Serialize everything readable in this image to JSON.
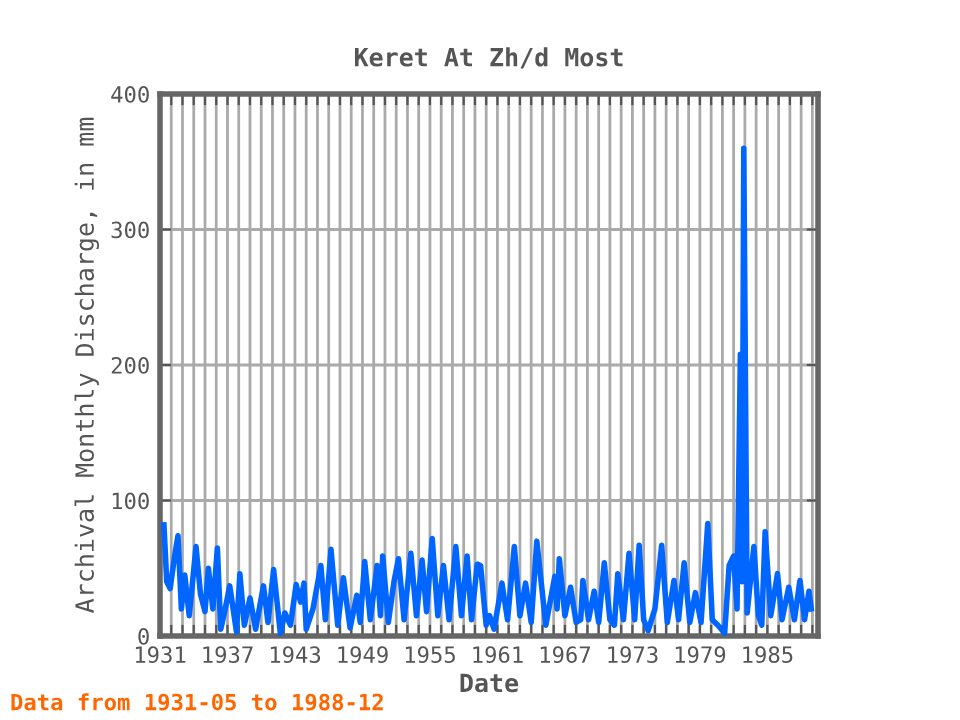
{
  "chart_data": {
    "type": "line",
    "title": "Keret At Zh/d Most",
    "xlabel": "Date",
    "ylabel": "Archival Monthly Discharge, in mm",
    "annotations": [
      "Data from 1931-05 to 1988-12"
    ],
    "xlim": [
      1931,
      1989.5
    ],
    "ylim": [
      0,
      400
    ],
    "xticks": [
      1931,
      {
        "value": 1932,
        "label": null
      },
      {
        "value": 1933,
        "label": null
      },
      {
        "value": 1934,
        "label": null
      },
      {
        "value": 1935,
        "label": null
      },
      {
        "value": 1936,
        "label": null
      },
      1937,
      {
        "value": 1938,
        "label": null
      },
      {
        "value": 1939,
        "label": null
      },
      {
        "value": 1940,
        "label": null
      },
      {
        "value": 1941,
        "label": null
      },
      {
        "value": 1942,
        "label": null
      },
      1943,
      {
        "value": 1944,
        "label": null
      },
      {
        "value": 1945,
        "label": null
      },
      {
        "value": 1946,
        "label": null
      },
      {
        "value": 1947,
        "label": null
      },
      {
        "value": 1948,
        "label": null
      },
      1949,
      {
        "value": 1950,
        "label": null
      },
      {
        "value": 1951,
        "label": null
      },
      {
        "value": 1952,
        "label": null
      },
      {
        "value": 1953,
        "label": null
      },
      {
        "value": 1954,
        "label": null
      },
      1955,
      {
        "value": 1956,
        "label": null
      },
      {
        "value": 1957,
        "label": null
      },
      {
        "value": 1958,
        "label": null
      },
      {
        "value": 1959,
        "label": null
      },
      {
        "value": 1960,
        "label": null
      },
      1961,
      {
        "value": 1962,
        "label": null
      },
      {
        "value": 1963,
        "label": null
      },
      {
        "value": 1964,
        "label": null
      },
      {
        "value": 1965,
        "label": null
      },
      {
        "value": 1966,
        "label": null
      },
      1967,
      {
        "value": 1968,
        "label": null
      },
      {
        "value": 1969,
        "label": null
      },
      {
        "value": 1970,
        "label": null
      },
      {
        "value": 1971,
        "label": null
      },
      {
        "value": 1972,
        "label": null
      },
      1973,
      {
        "value": 1974,
        "label": null
      },
      {
        "value": 1975,
        "label": null
      },
      {
        "value": 1976,
        "label": null
      },
      {
        "value": 1977,
        "label": null
      },
      {
        "value": 1978,
        "label": null
      },
      1979,
      {
        "value": 1980,
        "label": null
      },
      {
        "value": 1981,
        "label": null
      },
      {
        "value": 1982,
        "label": null
      },
      {
        "value": 1983,
        "label": null
      },
      {
        "value": 1984,
        "label": null
      },
      1985,
      {
        "value": 1986,
        "label": null
      },
      {
        "value": 1987,
        "label": null
      },
      {
        "value": 1988,
        "label": null
      },
      {
        "value": 1989,
        "label": null
      }
    ],
    "yticks": [
      0,
      100,
      200,
      300,
      400
    ],
    "grid": true,
    "marker": "none",
    "line_style": "solid",
    "series": [
      {
        "color": "#0066ff",
        "x": [
          1931.35,
          1931.6,
          1931.9,
          1932.3,
          1932.6,
          1932.9,
          1933.2,
          1933.6,
          1934.2,
          1934.6,
          1935.0,
          1935.3,
          1935.7,
          1936.1,
          1936.4,
          1936.8,
          1937.2,
          1937.8,
          1938.1,
          1938.5,
          1939.0,
          1939.5,
          1940.2,
          1940.6,
          1941.1,
          1941.7,
          1942.1,
          1942.6,
          1943.1,
          1943.5,
          1943.8,
          1944.0,
          1944.6,
          1945.3,
          1945.7,
          1946.2,
          1946.8,
          1947.3,
          1947.9,
          1948.5,
          1948.8,
          1949.2,
          1949.7,
          1950.3,
          1950.6,
          1950.8,
          1951.3,
          1951.8,
          1952.2,
          1952.7,
          1953.3,
          1953.8,
          1954.3,
          1954.7,
          1955.2,
          1955.7,
          1956.2,
          1956.7,
          1957.3,
          1957.8,
          1958.3,
          1958.7,
          1959.2,
          1959.5,
          1960.0,
          1960.3,
          1960.7,
          1961.4,
          1961.9,
          1962.5,
          1963.0,
          1963.5,
          1964.0,
          1964.5,
          1965.3,
          1966.1,
          1966.3,
          1966.5,
          1967.0,
          1967.5,
          1968.0,
          1968.4,
          1968.6,
          1969.1,
          1969.6,
          1970.0,
          1970.5,
          1971.0,
          1971.4,
          1971.7,
          1972.2,
          1972.7,
          1973.2,
          1973.6,
          1974.0,
          1974.4,
          1975.0,
          1975.6,
          1976.1,
          1976.7,
          1977.1,
          1977.6,
          1978.1,
          1978.6,
          1979.1,
          1979.7,
          1980.1,
          1980.6,
          1981.2,
          1981.6,
          1982.0,
          1982.3,
          1982.6,
          1982.75,
          1982.9,
          1983.2,
          1983.8,
          1984.2,
          1984.5,
          1984.8,
          1985.3,
          1985.9,
          1986.3,
          1986.9,
          1987.4,
          1987.9,
          1988.3,
          1988.7,
          1988.9
        ],
        "values": [
          82,
          40,
          35,
          59,
          74,
          20,
          45,
          15,
          66,
          31,
          18,
          50,
          20,
          65,
          5,
          20,
          37,
          3,
          46,
          8,
          28,
          5,
          37,
          10,
          49,
          2,
          17,
          8,
          38,
          25,
          39,
          5,
          20,
          52,
          12,
          64,
          8,
          43,
          6,
          30,
          10,
          55,
          12,
          52,
          15,
          59,
          10,
          40,
          57,
          12,
          61,
          15,
          56,
          18,
          72,
          15,
          52,
          12,
          66,
          15,
          59,
          12,
          53,
          52,
          8,
          15,
          5,
          39,
          12,
          66,
          15,
          39,
          10,
          70,
          8,
          44,
          20,
          57,
          15,
          36,
          10,
          12,
          41,
          12,
          33,
          10,
          54,
          12,
          8,
          46,
          12,
          61,
          12,
          67,
          12,
          4,
          20,
          67,
          10,
          41,
          12,
          54,
          10,
          32,
          10,
          83,
          12,
          8,
          2,
          52,
          59,
          20,
          208,
          40,
          360,
          17,
          66,
          15,
          8,
          77,
          15,
          46,
          12,
          36,
          12,
          41,
          12,
          33,
          20
        ]
      }
    ]
  }
}
